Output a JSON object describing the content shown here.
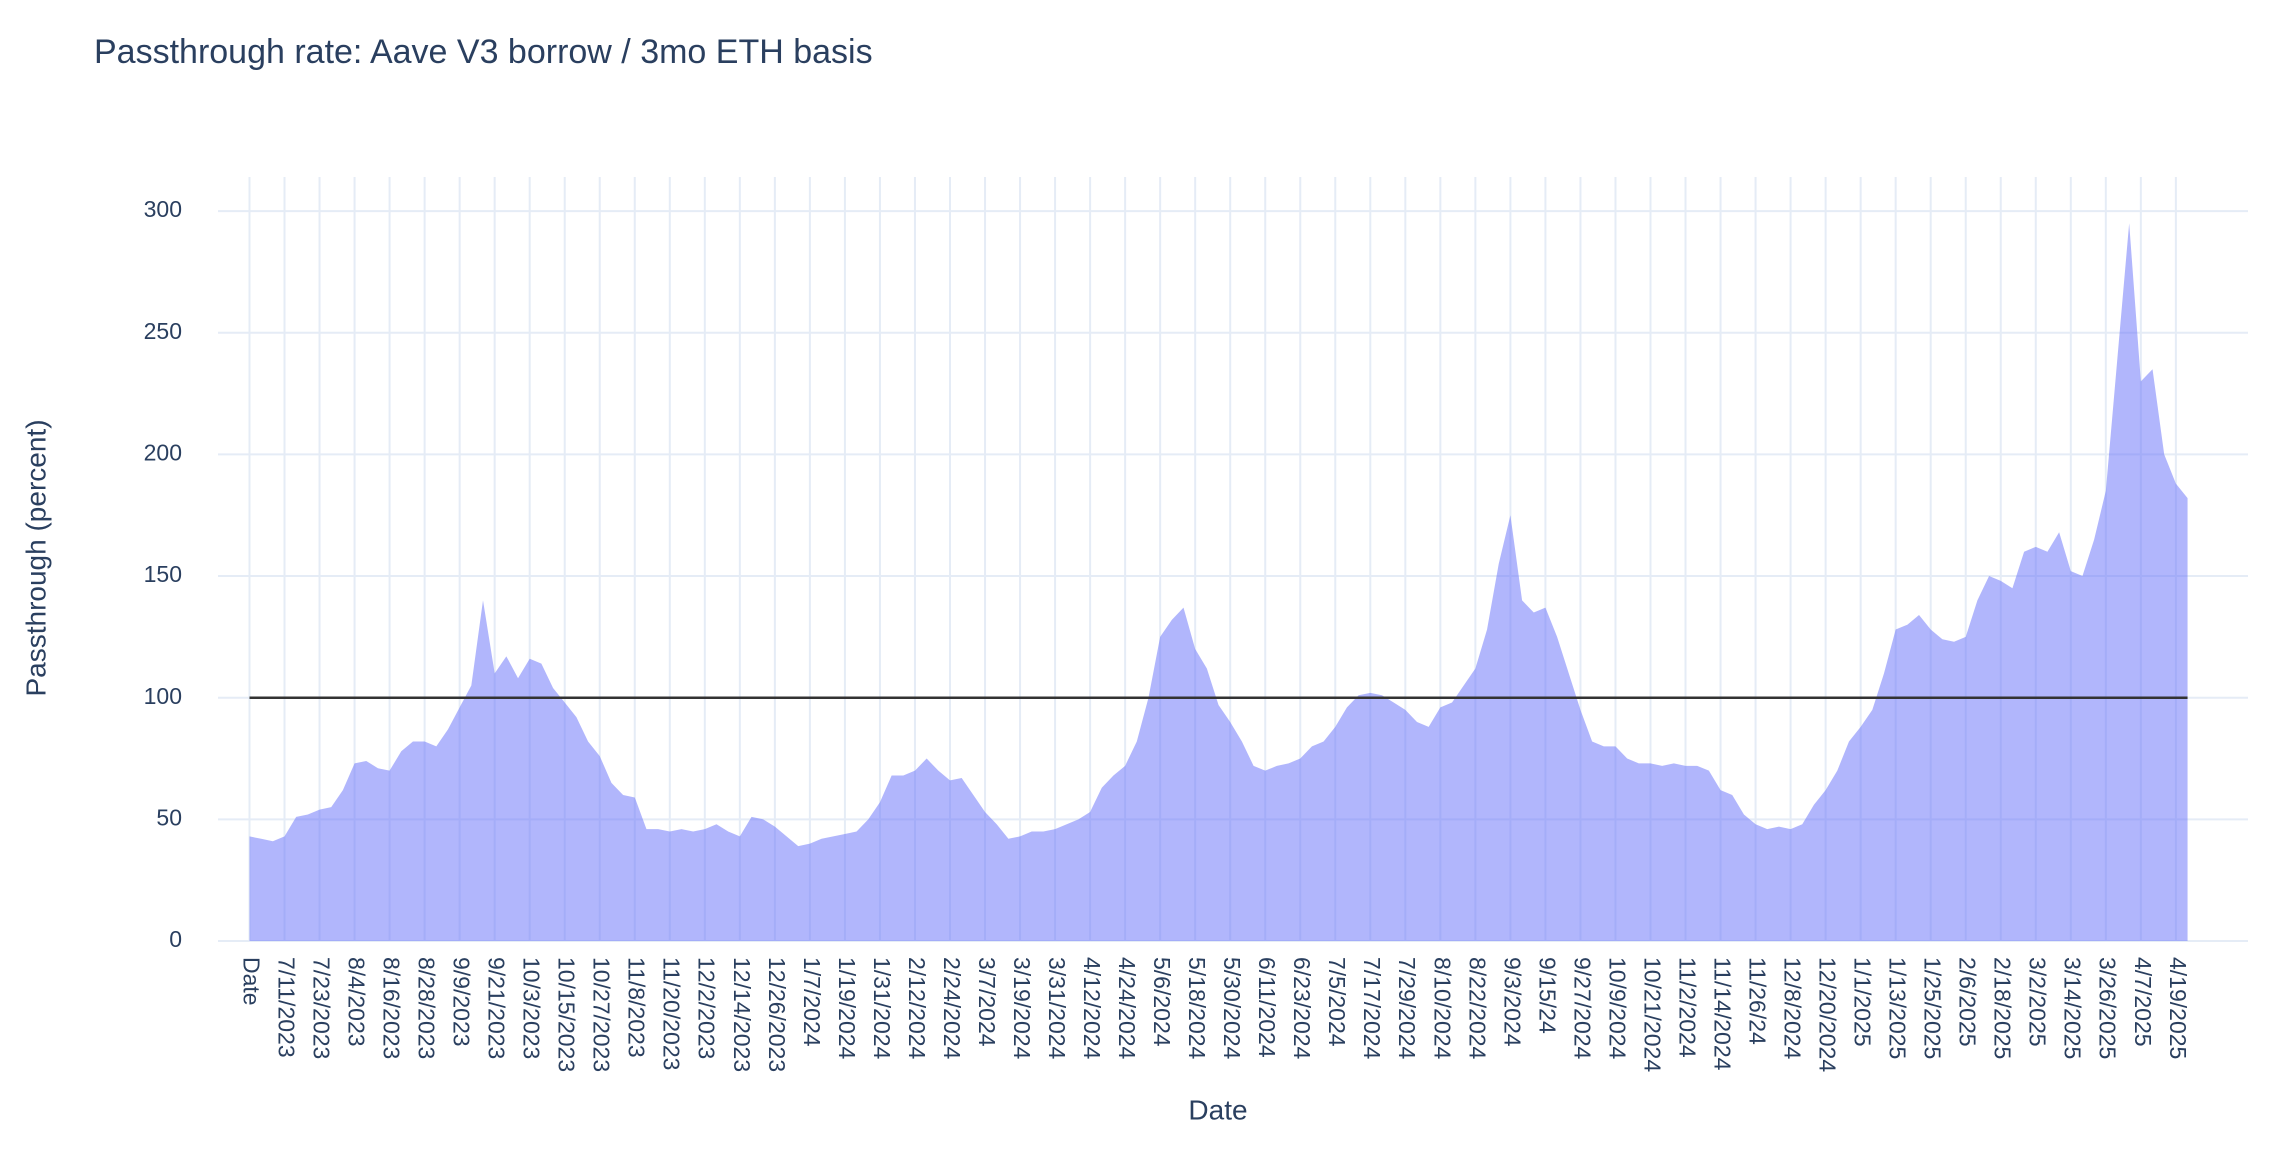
{
  "chart_data": {
    "type": "area",
    "title": "Passthrough rate: Aave V3 borrow / 3mo ETH basis",
    "x_label": "Date",
    "y_label": "Passthrough (percent)",
    "color": "#636efa",
    "ylim": [
      0,
      314
    ],
    "yticks": [
      0,
      50,
      100,
      150,
      200,
      250,
      300
    ],
    "grid": true,
    "hline": {
      "y": 100,
      "color": "#333333"
    },
    "categories": [
      "Date",
      null,
      null,
      "7/11/2023",
      null,
      null,
      "7/23/2023",
      null,
      null,
      "8/4/2023",
      null,
      null,
      "8/16/2023",
      null,
      null,
      "8/28/2023",
      null,
      null,
      "9/9/2023",
      null,
      null,
      "9/21/2023",
      null,
      null,
      "10/3/2023",
      null,
      null,
      "10/15/2023",
      null,
      null,
      "10/27/2023",
      null,
      null,
      "11/8/2023",
      null,
      null,
      "11/20/2023",
      null,
      null,
      "12/2/2023",
      null,
      null,
      "12/14/2023",
      null,
      null,
      "12/26/2023",
      null,
      null,
      "1/7/2024",
      null,
      null,
      "1/19/2024",
      null,
      null,
      "1/31/2024",
      null,
      null,
      "2/12/2024",
      null,
      null,
      "2/24/2024",
      null,
      null,
      "3/7/2024",
      null,
      null,
      "3/19/2024",
      null,
      null,
      "3/31/2024",
      null,
      null,
      "4/12/2024",
      null,
      null,
      "4/24/2024",
      null,
      null,
      "5/6/2024",
      null,
      null,
      "5/18/2024",
      null,
      null,
      "5/30/2024",
      null,
      null,
      "6/11/2024",
      null,
      null,
      "6/23/2024",
      null,
      null,
      "7/5/2024",
      null,
      null,
      "7/17/2024",
      null,
      null,
      "7/29/2024",
      null,
      null,
      "8/10/2024",
      null,
      null,
      "8/22/2024",
      null,
      null,
      "9/3/2024",
      null,
      null,
      "9/15/24",
      null,
      null,
      "9/27/2024",
      null,
      null,
      "10/9/2024",
      null,
      null,
      "10/21/2024",
      null,
      null,
      "11/2/2024",
      null,
      null,
      "11/14/2024",
      null,
      null,
      "11/26/24",
      null,
      null,
      "12/8/2024",
      null,
      null,
      "12/20/2024",
      null,
      null,
      "1/1/2025",
      null,
      null,
      "1/13/2025",
      null,
      null,
      "1/25/2025",
      null,
      null,
      "2/6/2025",
      null,
      null,
      "2/18/2025",
      null,
      null,
      "3/2/2025",
      null,
      null,
      "3/14/2025",
      null,
      null,
      "3/26/2025",
      null,
      null,
      "4/7/2025",
      null,
      null,
      "4/19/2025",
      null
    ],
    "values": [
      43,
      42,
      41,
      43,
      51,
      52,
      54,
      55,
      62,
      73,
      74,
      71,
      70,
      78,
      82,
      82,
      80,
      87,
      96,
      105,
      140,
      110,
      117,
      108,
      116,
      114,
      104,
      98,
      92,
      82,
      76,
      65,
      60,
      59,
      46,
      46,
      45,
      46,
      45,
      46,
      48,
      45,
      43,
      51,
      50,
      47,
      43,
      39,
      40,
      42,
      43,
      44,
      45,
      50,
      57,
      68,
      68,
      70,
      75,
      70,
      66,
      67,
      60,
      53,
      48,
      42,
      43,
      45,
      45,
      46,
      48,
      50,
      53,
      63,
      68,
      72,
      82,
      100,
      125,
      132,
      137,
      120,
      112,
      97,
      90,
      82,
      72,
      70,
      72,
      73,
      75,
      80,
      82,
      88,
      96,
      101,
      102,
      101,
      98,
      95,
      90,
      88,
      96,
      98,
      105,
      112,
      128,
      155,
      175,
      140,
      135,
      137,
      125,
      110,
      95,
      82,
      80,
      80,
      75,
      73,
      73,
      72,
      73,
      72,
      72,
      70,
      62,
      60,
      52,
      48,
      46,
      47,
      46,
      48,
      56,
      62,
      70,
      82,
      88,
      95,
      110,
      128,
      130,
      134,
      128,
      124,
      123,
      125,
      140,
      150,
      148,
      145,
      160,
      162,
      160,
      168,
      152,
      150,
      165,
      185,
      240,
      295,
      230,
      235,
      200,
      188,
      182
    ]
  }
}
